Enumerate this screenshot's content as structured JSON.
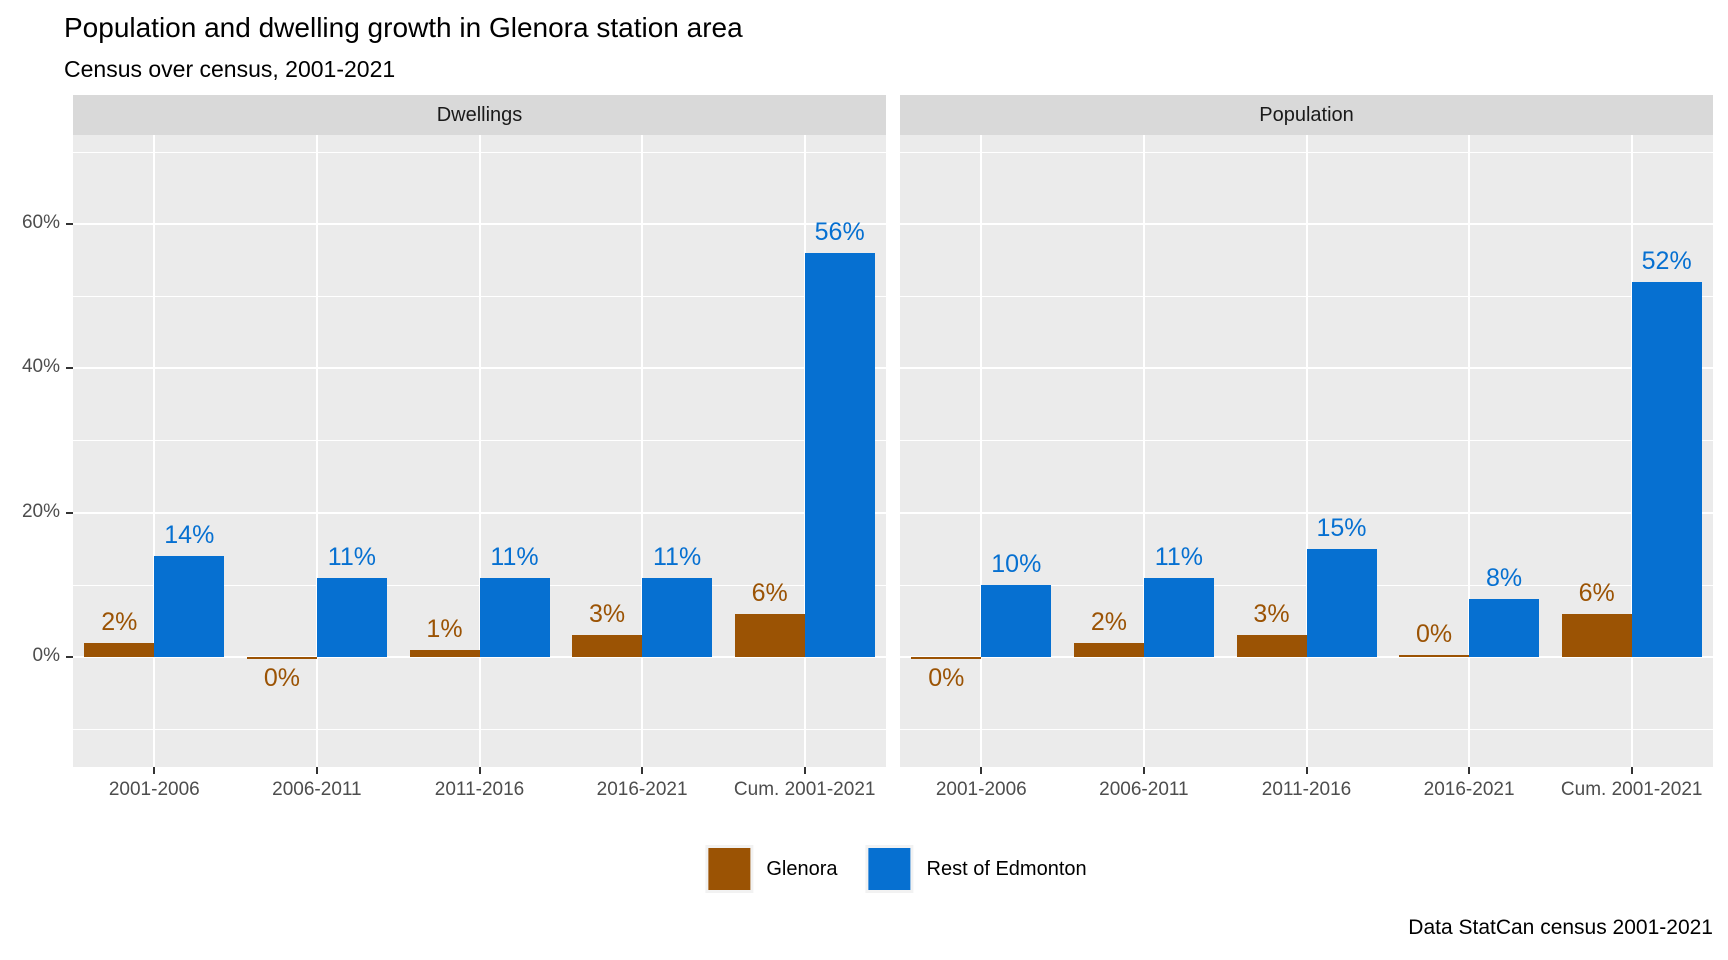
{
  "title": "Population and dwelling growth in Glenora station area",
  "subtitle": "Census over census, 2001-2021",
  "caption": "Data StatCan census 2001-2021",
  "colors": {
    "glenora": "#9B5304",
    "rest_of_edmonton": "#0670D1",
    "panel_background": "#EBEBEB",
    "strip_background": "#D9D9D9",
    "gridline": "#FFFFFF",
    "axis_text": "#4D4D4D",
    "tick_mark": "#333333",
    "legend_key_background": "#F2F2F2"
  },
  "y_axis": {
    "tick_labels": [
      "0%",
      "20%",
      "40%",
      "60%"
    ],
    "tick_values": [
      0,
      20,
      40,
      60
    ]
  },
  "legend": {
    "items": [
      {
        "label": "Glenora",
        "color": "#9B5304"
      },
      {
        "label": "Rest of Edmonton",
        "color": "#0670D1"
      }
    ]
  },
  "chart_data": {
    "type": "bar",
    "layout": "two faceted panels, dodged bars, legend bottom, grid on",
    "categories": [
      "2001-2006",
      "2006-2011",
      "2011-2016",
      "2016-2021",
      "Cum. 2001-2021"
    ],
    "facets": [
      {
        "title": "Dwellings",
        "series": [
          {
            "name": "Glenora",
            "color": "#9B5304",
            "values": [
              2,
              -0.3,
              1,
              3,
              6
            ],
            "labels": [
              "2%",
              "0%",
              "1%",
              "3%",
              "6%"
            ]
          },
          {
            "name": "Rest of Edmonton",
            "color": "#0670D1",
            "values": [
              14,
              11,
              11,
              11,
              56
            ],
            "labels": [
              "14%",
              "11%",
              "11%",
              "11%",
              "56%"
            ]
          }
        ]
      },
      {
        "title": "Population",
        "series": [
          {
            "name": "Glenora",
            "color": "#9B5304",
            "values": [
              -0.3,
              2,
              3,
              0.2,
              6
            ],
            "labels": [
              "0%",
              "2%",
              "3%",
              "0%",
              "6%"
            ]
          },
          {
            "name": "Rest of Edmonton",
            "color": "#0670D1",
            "values": [
              10,
              11,
              15,
              8,
              52
            ],
            "labels": [
              "10%",
              "11%",
              "15%",
              "8%",
              "52%"
            ]
          }
        ]
      }
    ],
    "title": "Population and dwelling growth in Glenora station area",
    "subtitle": "Census over census, 2001-2021",
    "xlabel": "",
    "ylabel": "",
    "ylim": [
      -15.2,
      72.3
    ],
    "y_major_gridlines": [
      0,
      20,
      40,
      60
    ],
    "y_minor_gridlines": [
      -10,
      10,
      30,
      50,
      70
    ],
    "legend_position": "bottom-center"
  }
}
